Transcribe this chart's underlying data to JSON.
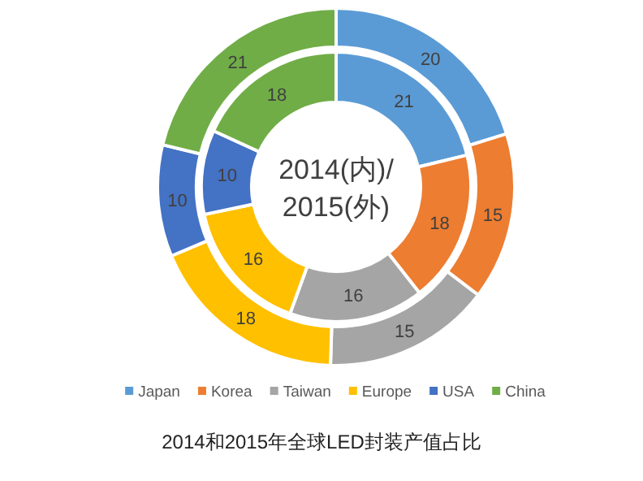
{
  "chart_data": {
    "type": "donut",
    "title": "2014和2015年全球LED封装产值占比",
    "annotations": [
      "2014(内)/\n2015(外)"
    ],
    "categories": [
      "Japan",
      "Korea",
      "Taiwan",
      "Europe",
      "USA",
      "China"
    ],
    "colors": [
      "#5b9bd5",
      "#ed7d31",
      "#a5a5a5",
      "#ffc000",
      "#4472c4",
      "#70ad47"
    ],
    "series": [
      {
        "values": [
          21,
          18,
          16,
          16,
          10,
          18
        ]
      },
      {
        "values": [
          20,
          15,
          15,
          18,
          10,
          21
        ]
      }
    ],
    "data_labels": true,
    "legend": "bottom"
  }
}
